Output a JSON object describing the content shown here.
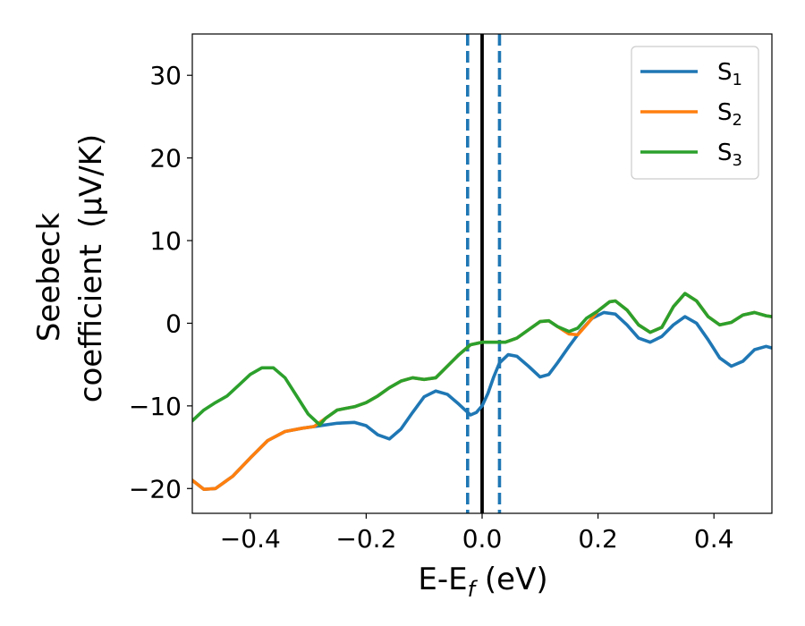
{
  "chart_data": {
    "type": "line",
    "title": "",
    "xlabel": "E-E",
    "xlabel_sub": "f",
    "xlabel_unit": " (eV)",
    "ylabel_line1": "Seebeck",
    "ylabel_line2": "coefficient",
    "ylabel_unit": "(μV/K)",
    "xlim": [
      -0.5,
      0.5
    ],
    "ylim": [
      -23,
      35
    ],
    "xticks": [
      -0.4,
      -0.2,
      0.0,
      0.2,
      0.4
    ],
    "xtick_labels": [
      "−0.4",
      "−0.2",
      "0.0",
      "0.2",
      "0.4"
    ],
    "yticks": [
      -20,
      -10,
      0,
      10,
      20,
      30
    ],
    "ytick_labels": [
      "−20",
      "−10",
      "0",
      "10",
      "20",
      "30"
    ],
    "grid": false,
    "legend_position": "top-right",
    "vlines": [
      {
        "x": -0.025,
        "style": "dashed",
        "color": "#1f77b4"
      },
      {
        "x": 0.03,
        "style": "dashed",
        "color": "#1f77b4"
      },
      {
        "x": 0.0,
        "style": "solid",
        "color": "#000000"
      }
    ],
    "series": [
      {
        "name": "S",
        "sub": "1",
        "color": "#1f77b4",
        "points": [
          [
            -0.5,
            -19.0
          ],
          [
            -0.48,
            -20.1
          ],
          [
            -0.46,
            -20.0
          ],
          [
            -0.43,
            -18.5
          ],
          [
            -0.4,
            -16.3
          ],
          [
            -0.37,
            -14.2
          ],
          [
            -0.34,
            -13.1
          ],
          [
            -0.31,
            -12.7
          ],
          [
            -0.28,
            -12.4
          ],
          [
            -0.25,
            -12.1
          ],
          [
            -0.22,
            -12.0
          ],
          [
            -0.2,
            -12.4
          ],
          [
            -0.18,
            -13.5
          ],
          [
            -0.16,
            -14.0
          ],
          [
            -0.14,
            -12.8
          ],
          [
            -0.12,
            -10.8
          ],
          [
            -0.1,
            -8.9
          ],
          [
            -0.08,
            -8.2
          ],
          [
            -0.06,
            -8.6
          ],
          [
            -0.04,
            -9.8
          ],
          [
            -0.02,
            -11.1
          ],
          [
            -0.01,
            -10.8
          ],
          [
            0.0,
            -10.0
          ],
          [
            0.01,
            -8.5
          ],
          [
            0.02,
            -6.5
          ],
          [
            0.03,
            -4.8
          ],
          [
            0.045,
            -3.8
          ],
          [
            0.06,
            -4.0
          ],
          [
            0.08,
            -5.2
          ],
          [
            0.1,
            -6.5
          ],
          [
            0.115,
            -6.2
          ],
          [
            0.13,
            -4.8
          ],
          [
            0.15,
            -2.8
          ],
          [
            0.17,
            -0.9
          ],
          [
            0.19,
            0.6
          ],
          [
            0.21,
            1.3
          ],
          [
            0.23,
            1.1
          ],
          [
            0.25,
            -0.2
          ],
          [
            0.27,
            -1.8
          ],
          [
            0.29,
            -2.3
          ],
          [
            0.31,
            -1.6
          ],
          [
            0.33,
            -0.2
          ],
          [
            0.35,
            0.8
          ],
          [
            0.37,
            0.0
          ],
          [
            0.39,
            -2.0
          ],
          [
            0.41,
            -4.2
          ],
          [
            0.43,
            -5.2
          ],
          [
            0.45,
            -4.6
          ],
          [
            0.47,
            -3.2
          ],
          [
            0.49,
            -2.8
          ],
          [
            0.5,
            -3.0
          ]
        ]
      },
      {
        "name": "S",
        "sub": "2",
        "color": "#ff7f0e",
        "points": [
          [
            -0.5,
            -19.0
          ],
          [
            -0.48,
            -20.1
          ],
          [
            -0.46,
            -20.0
          ],
          [
            -0.43,
            -18.5
          ],
          [
            -0.4,
            -16.3
          ],
          [
            -0.37,
            -14.2
          ],
          [
            -0.34,
            -13.1
          ],
          [
            -0.31,
            -12.7
          ],
          [
            -0.29,
            -12.5
          ],
          [
            -0.27,
            -11.5
          ],
          [
            -0.25,
            -10.5
          ],
          [
            -0.22,
            -10.1
          ],
          [
            -0.2,
            -9.6
          ],
          [
            -0.18,
            -8.8
          ],
          [
            -0.16,
            -7.8
          ],
          [
            -0.14,
            -7.0
          ],
          [
            -0.12,
            -6.6
          ],
          [
            -0.1,
            -6.8
          ],
          [
            -0.08,
            -6.6
          ],
          [
            -0.06,
            -5.2
          ],
          [
            -0.04,
            -3.8
          ],
          [
            -0.02,
            -2.6
          ],
          [
            0.0,
            -2.3
          ],
          [
            0.02,
            -2.3
          ],
          [
            0.04,
            -2.3
          ],
          [
            0.06,
            -1.8
          ],
          [
            0.08,
            -0.8
          ],
          [
            0.1,
            0.2
          ],
          [
            0.115,
            0.3
          ],
          [
            0.13,
            -0.4
          ],
          [
            0.15,
            -1.3
          ],
          [
            0.165,
            -1.4
          ],
          [
            0.18,
            -0.2
          ],
          [
            0.2,
            1.5
          ],
          [
            0.22,
            2.6
          ],
          [
            0.23,
            2.7
          ],
          [
            0.25,
            1.6
          ],
          [
            0.27,
            -0.2
          ],
          [
            0.29,
            -1.1
          ],
          [
            0.31,
            -0.5
          ],
          [
            0.33,
            2.0
          ],
          [
            0.35,
            3.6
          ],
          [
            0.37,
            2.7
          ],
          [
            0.39,
            0.8
          ],
          [
            0.41,
            -0.2
          ],
          [
            0.43,
            0.1
          ],
          [
            0.45,
            1.0
          ],
          [
            0.47,
            1.3
          ],
          [
            0.49,
            0.9
          ],
          [
            0.5,
            0.8
          ]
        ]
      },
      {
        "name": "S",
        "sub": "3",
        "color": "#2ca02c",
        "points": [
          [
            -0.5,
            -11.8
          ],
          [
            -0.48,
            -10.5
          ],
          [
            -0.46,
            -9.6
          ],
          [
            -0.44,
            -8.8
          ],
          [
            -0.42,
            -7.5
          ],
          [
            -0.4,
            -6.2
          ],
          [
            -0.38,
            -5.4
          ],
          [
            -0.36,
            -5.4
          ],
          [
            -0.34,
            -6.6
          ],
          [
            -0.32,
            -8.8
          ],
          [
            -0.3,
            -11.0
          ],
          [
            -0.28,
            -12.3
          ],
          [
            -0.27,
            -11.5
          ],
          [
            -0.25,
            -10.5
          ],
          [
            -0.22,
            -10.1
          ],
          [
            -0.2,
            -9.6
          ],
          [
            -0.18,
            -8.8
          ],
          [
            -0.16,
            -7.8
          ],
          [
            -0.14,
            -7.0
          ],
          [
            -0.12,
            -6.6
          ],
          [
            -0.1,
            -6.8
          ],
          [
            -0.08,
            -6.6
          ],
          [
            -0.06,
            -5.2
          ],
          [
            -0.04,
            -3.8
          ],
          [
            -0.02,
            -2.6
          ],
          [
            0.0,
            -2.3
          ],
          [
            0.02,
            -2.3
          ],
          [
            0.04,
            -2.3
          ],
          [
            0.06,
            -1.8
          ],
          [
            0.08,
            -0.8
          ],
          [
            0.1,
            0.2
          ],
          [
            0.115,
            0.3
          ],
          [
            0.13,
            -0.4
          ],
          [
            0.15,
            -1.0
          ],
          [
            0.165,
            -0.6
          ],
          [
            0.18,
            0.6
          ],
          [
            0.2,
            1.5
          ],
          [
            0.22,
            2.6
          ],
          [
            0.23,
            2.7
          ],
          [
            0.25,
            1.6
          ],
          [
            0.27,
            -0.2
          ],
          [
            0.29,
            -1.1
          ],
          [
            0.31,
            -0.5
          ],
          [
            0.33,
            2.0
          ],
          [
            0.35,
            3.6
          ],
          [
            0.37,
            2.7
          ],
          [
            0.39,
            0.8
          ],
          [
            0.41,
            -0.2
          ],
          [
            0.43,
            0.1
          ],
          [
            0.45,
            1.0
          ],
          [
            0.47,
            1.3
          ],
          [
            0.49,
            0.9
          ],
          [
            0.5,
            0.8
          ]
        ]
      }
    ]
  }
}
